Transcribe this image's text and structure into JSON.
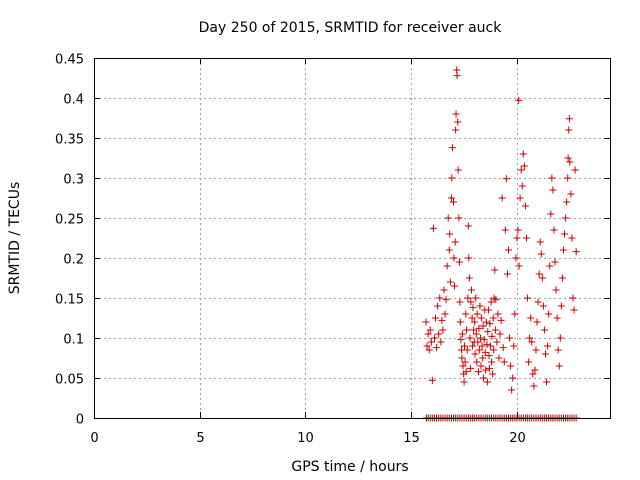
{
  "chart_data": {
    "type": "scatter",
    "title": "Day 250 of 2015, SRMTID for receiver auck",
    "xlabel": "GPS time / hours",
    "ylabel": "SRMTID / TECUs",
    "xlim": [
      0,
      24.4
    ],
    "ylim": [
      0,
      0.45
    ],
    "xticks": [
      0,
      5,
      10,
      15,
      20
    ],
    "yticks": [
      0,
      0.05,
      0.1,
      0.15,
      0.2,
      0.25,
      0.3,
      0.35,
      0.4,
      0.45
    ],
    "ytick_labels": [
      "0",
      "0.05",
      "0.1",
      "0.15",
      "0.2",
      "0.25",
      "0.3",
      "0.35",
      "0.4",
      "0.45"
    ],
    "grid": true,
    "marker": "+",
    "color": "#cc0000",
    "series": [
      {
        "name": "SRMTID",
        "points": [
          [
            15.7,
            0.12
          ],
          [
            15.75,
            0.09
          ],
          [
            15.8,
            0.105
          ],
          [
            15.85,
            0.085
          ],
          [
            15.9,
            0.11
          ],
          [
            15.95,
            0.095
          ],
          [
            16.0,
            0.047
          ],
          [
            16.05,
            0.237
          ],
          [
            16.1,
            0.1
          ],
          [
            16.15,
            0.125
          ],
          [
            16.2,
            0.088
          ],
          [
            16.25,
            0.14
          ],
          [
            16.3,
            0.105
          ],
          [
            16.35,
            0.15
          ],
          [
            16.4,
            0.095
          ],
          [
            16.45,
            0.122
          ],
          [
            16.5,
            0.11
          ],
          [
            16.55,
            0.16
          ],
          [
            16.6,
            0.13
          ],
          [
            16.65,
            0.148
          ],
          [
            16.7,
            0.19
          ],
          [
            16.75,
            0.25
          ],
          [
            16.8,
            0.21
          ],
          [
            16.82,
            0.23
          ],
          [
            16.85,
            0.17
          ],
          [
            16.9,
            0.275
          ],
          [
            16.92,
            0.3
          ],
          [
            16.95,
            0.338
          ],
          [
            17.0,
            0.27
          ],
          [
            17.02,
            0.2
          ],
          [
            17.05,
            0.165
          ],
          [
            17.08,
            0.22
          ],
          [
            17.1,
            0.36
          ],
          [
            17.12,
            0.38
          ],
          [
            17.15,
            0.435
          ],
          [
            17.17,
            0.428
          ],
          [
            17.2,
            0.37
          ],
          [
            17.22,
            0.31
          ],
          [
            17.25,
            0.25
          ],
          [
            17.28,
            0.195
          ],
          [
            17.3,
            0.145
          ],
          [
            17.32,
            0.12
          ],
          [
            17.35,
            0.098
          ],
          [
            17.38,
            0.085
          ],
          [
            17.4,
            0.075
          ],
          [
            17.42,
            0.105
          ],
          [
            17.45,
            0.065
          ],
          [
            17.48,
            0.055
          ],
          [
            17.5,
            0.045
          ],
          [
            17.52,
            0.09
          ],
          [
            17.55,
            0.07
          ],
          [
            17.58,
            0.13
          ],
          [
            17.6,
            0.058
          ],
          [
            17.62,
            0.11
          ],
          [
            17.65,
            0.085
          ],
          [
            17.68,
            0.15
          ],
          [
            17.7,
            0.24
          ],
          [
            17.72,
            0.2
          ],
          [
            17.75,
            0.175
          ],
          [
            17.78,
            0.1
          ],
          [
            17.8,
            0.062
          ],
          [
            17.82,
            0.145
          ],
          [
            17.85,
            0.16
          ],
          [
            17.88,
            0.125
          ],
          [
            17.9,
            0.09
          ],
          [
            17.92,
            0.138
          ],
          [
            17.95,
            0.11
          ],
          [
            17.98,
            0.095
          ],
          [
            18.0,
            0.12
          ],
          [
            18.02,
            0.08
          ],
          [
            18.05,
            0.15
          ],
          [
            18.08,
            0.105
          ],
          [
            18.1,
            0.07
          ],
          [
            18.12,
            0.13
          ],
          [
            18.15,
            0.095
          ],
          [
            18.18,
            0.058
          ],
          [
            18.2,
            0.112
          ],
          [
            18.22,
            0.085
          ],
          [
            18.25,
            0.14
          ],
          [
            18.28,
            0.1
          ],
          [
            18.3,
            0.065
          ],
          [
            18.32,
            0.125
          ],
          [
            18.35,
            0.09
          ],
          [
            18.38,
            0.075
          ],
          [
            18.4,
            0.115
          ],
          [
            18.42,
            0.05
          ],
          [
            18.45,
            0.098
          ],
          [
            18.48,
            0.135
          ],
          [
            18.5,
            0.082
          ],
          [
            18.52,
            0.06
          ],
          [
            18.55,
            0.12
          ],
          [
            18.58,
            0.092
          ],
          [
            18.6,
            0.045
          ],
          [
            18.62,
            0.108
          ],
          [
            18.65,
            0.135
          ],
          [
            18.68,
            0.078
          ],
          [
            18.7,
            0.062
          ],
          [
            18.72,
            0.118
          ],
          [
            18.75,
            0.09
          ],
          [
            18.78,
            0.145
          ],
          [
            18.8,
            0.07
          ],
          [
            18.82,
            0.102
          ],
          [
            18.85,
            0.055
          ],
          [
            18.88,
            0.125
          ],
          [
            18.9,
            0.085
          ],
          [
            18.92,
            0.15
          ],
          [
            18.95,
            0.185
          ],
          [
            18.98,
            0.11
          ],
          [
            19.0,
            0.148
          ],
          [
            19.05,
            0.095
          ],
          [
            19.1,
            0.13
          ],
          [
            19.15,
            0.075
          ],
          [
            19.2,
            0.105
          ],
          [
            19.25,
            0.122
          ],
          [
            19.3,
            0.275
          ],
          [
            19.35,
            0.088
          ],
          [
            19.4,
            0.07
          ],
          [
            19.45,
            0.235
          ],
          [
            19.5,
            0.299
          ],
          [
            19.55,
            0.18
          ],
          [
            19.6,
            0.21
          ],
          [
            19.65,
            0.1
          ],
          [
            19.7,
            0.065
          ],
          [
            19.75,
            0.035
          ],
          [
            19.8,
            0.05
          ],
          [
            19.85,
            0.09
          ],
          [
            19.9,
            0.13
          ],
          [
            19.95,
            0.2
          ],
          [
            20.0,
            0.225
          ],
          [
            20.05,
            0.235
          ],
          [
            20.08,
            0.397
          ],
          [
            20.1,
            0.19
          ],
          [
            20.15,
            0.275
          ],
          [
            20.2,
            0.31
          ],
          [
            20.25,
            0.29
          ],
          [
            20.3,
            0.33
          ],
          [
            20.35,
            0.315
          ],
          [
            20.4,
            0.265
          ],
          [
            20.45,
            0.225
          ],
          [
            20.5,
            0.15
          ],
          [
            20.55,
            0.07
          ],
          [
            20.6,
            0.1
          ],
          [
            20.65,
            0.125
          ],
          [
            20.7,
            0.095
          ],
          [
            20.75,
            0.055
          ],
          [
            20.8,
            0.04
          ],
          [
            20.85,
            0.06
          ],
          [
            20.9,
            0.085
          ],
          [
            20.95,
            0.12
          ],
          [
            21.0,
            0.145
          ],
          [
            21.05,
            0.18
          ],
          [
            21.1,
            0.22
          ],
          [
            21.15,
            0.205
          ],
          [
            21.2,
            0.175
          ],
          [
            21.25,
            0.14
          ],
          [
            21.3,
            0.11
          ],
          [
            21.35,
            0.08
          ],
          [
            21.4,
            0.045
          ],
          [
            21.45,
            0.09
          ],
          [
            21.5,
            0.13
          ],
          [
            21.55,
            0.19
          ],
          [
            21.6,
            0.255
          ],
          [
            21.65,
            0.3
          ],
          [
            21.7,
            0.285
          ],
          [
            21.75,
            0.235
          ],
          [
            21.8,
            0.195
          ],
          [
            21.85,
            0.16
          ],
          [
            21.9,
            0.125
          ],
          [
            21.95,
            0.085
          ],
          [
            22.0,
            0.065
          ],
          [
            22.05,
            0.1
          ],
          [
            22.1,
            0.14
          ],
          [
            22.15,
            0.175
          ],
          [
            22.2,
            0.21
          ],
          [
            22.25,
            0.23
          ],
          [
            22.3,
            0.25
          ],
          [
            22.35,
            0.27
          ],
          [
            22.4,
            0.3
          ],
          [
            22.42,
            0.325
          ],
          [
            22.45,
            0.36
          ],
          [
            22.48,
            0.374
          ],
          [
            22.5,
            0.32
          ],
          [
            22.55,
            0.28
          ],
          [
            22.6,
            0.225
          ],
          [
            22.65,
            0.15
          ],
          [
            22.7,
            0.135
          ],
          [
            22.75,
            0.31
          ],
          [
            22.8,
            0.208
          ],
          [
            15.72,
            0.0
          ],
          [
            15.8,
            0.0
          ],
          [
            15.9,
            0.0
          ],
          [
            16.0,
            0.0
          ],
          [
            16.1,
            0.0
          ],
          [
            16.2,
            0.0
          ],
          [
            16.3,
            0.0
          ],
          [
            16.4,
            0.0
          ],
          [
            16.5,
            0.0
          ],
          [
            16.6,
            0.0
          ],
          [
            16.7,
            0.0
          ],
          [
            16.8,
            0.0
          ],
          [
            16.9,
            0.0
          ],
          [
            17.0,
            0.0
          ],
          [
            17.1,
            0.0
          ],
          [
            17.2,
            0.0
          ],
          [
            17.3,
            0.0
          ],
          [
            17.4,
            0.0
          ],
          [
            17.5,
            0.0
          ],
          [
            17.6,
            0.0
          ],
          [
            17.7,
            0.0
          ],
          [
            17.8,
            0.0
          ],
          [
            17.9,
            0.0
          ],
          [
            18.0,
            0.0
          ],
          [
            18.1,
            0.0
          ],
          [
            18.2,
            0.0
          ],
          [
            18.3,
            0.0
          ],
          [
            18.4,
            0.0
          ],
          [
            18.5,
            0.0
          ],
          [
            18.6,
            0.0
          ],
          [
            18.7,
            0.0
          ],
          [
            18.8,
            0.0
          ],
          [
            18.9,
            0.0
          ],
          [
            19.0,
            0.0
          ],
          [
            19.1,
            0.0
          ],
          [
            19.2,
            0.0
          ],
          [
            19.3,
            0.0
          ],
          [
            19.4,
            0.0
          ],
          [
            19.5,
            0.0
          ],
          [
            19.6,
            0.0
          ],
          [
            19.7,
            0.0
          ],
          [
            19.8,
            0.0
          ],
          [
            19.9,
            0.0
          ],
          [
            20.0,
            0.0
          ],
          [
            20.1,
            0.0
          ],
          [
            20.2,
            0.0
          ],
          [
            20.3,
            0.0
          ],
          [
            20.4,
            0.0
          ],
          [
            20.5,
            0.0
          ],
          [
            20.6,
            0.0
          ],
          [
            20.7,
            0.0
          ],
          [
            20.8,
            0.0
          ],
          [
            20.9,
            0.0
          ],
          [
            21.0,
            0.0
          ],
          [
            21.1,
            0.0
          ],
          [
            21.2,
            0.0
          ],
          [
            21.3,
            0.0
          ],
          [
            21.4,
            0.0
          ],
          [
            21.5,
            0.0
          ],
          [
            21.6,
            0.0
          ],
          [
            21.7,
            0.0
          ],
          [
            21.8,
            0.0
          ],
          [
            21.9,
            0.0
          ],
          [
            22.0,
            0.0
          ],
          [
            22.1,
            0.0
          ],
          [
            22.2,
            0.0
          ],
          [
            22.3,
            0.0
          ],
          [
            22.4,
            0.0
          ],
          [
            22.5,
            0.0
          ],
          [
            22.6,
            0.0
          ],
          [
            22.7,
            0.0
          ],
          [
            22.8,
            0.0
          ]
        ]
      }
    ]
  }
}
